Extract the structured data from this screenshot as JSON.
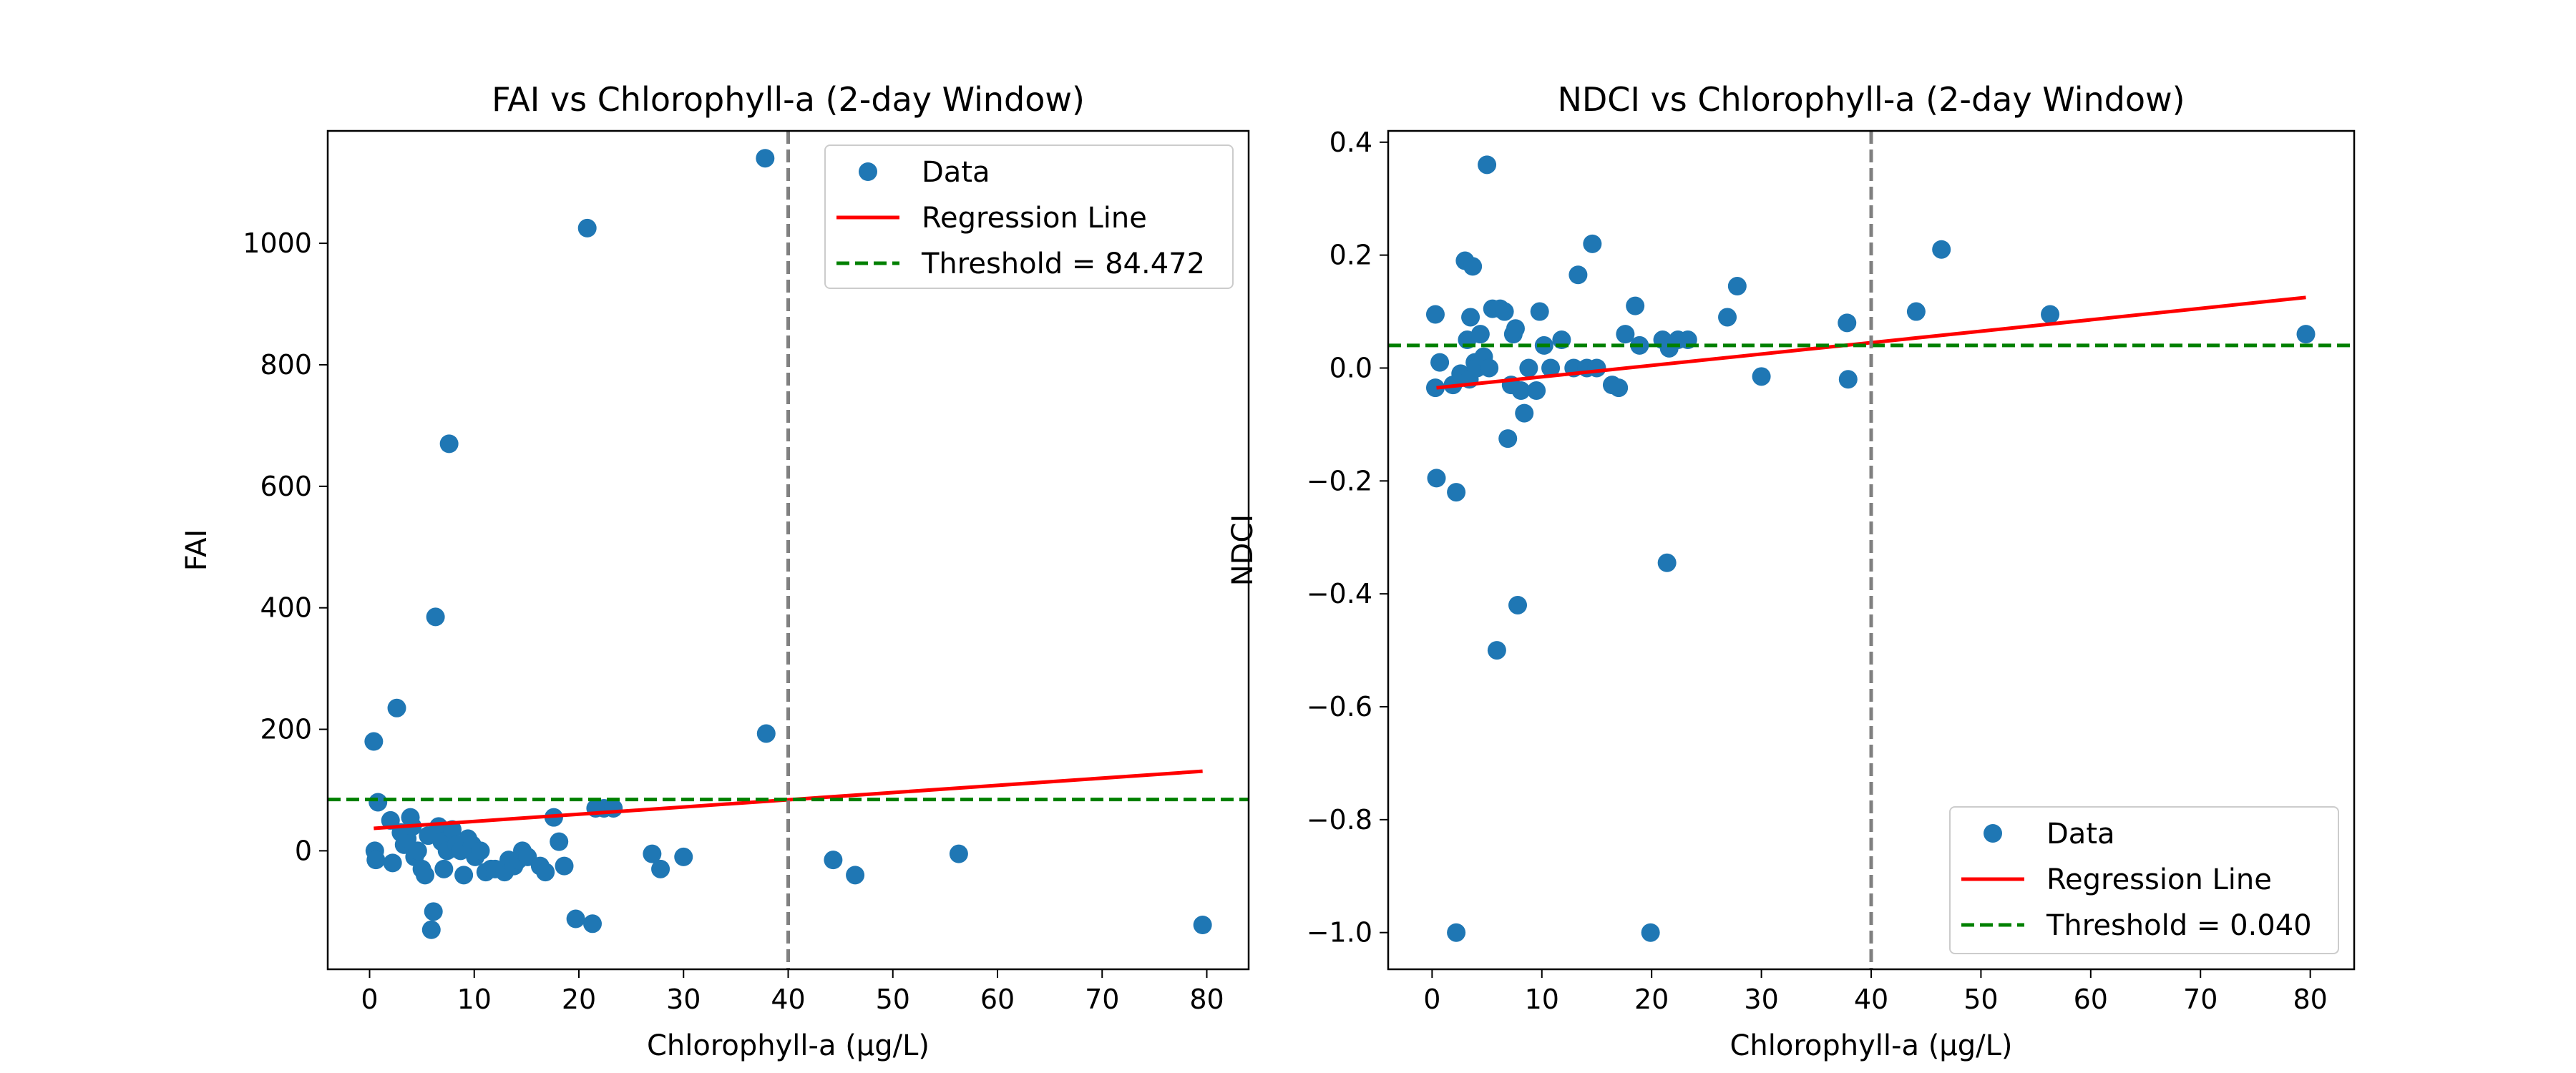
{
  "colors": {
    "point": "#1f77b4",
    "regression": "#ff0000",
    "threshold": "#008000",
    "vertical_line": "#808080"
  },
  "chart_data": [
    {
      "type": "scatter",
      "title": "FAI vs Chlorophyll-a (2-day Window)",
      "xlabel": "Chlorophyll-a (µg/L)",
      "ylabel": "FAI",
      "xlim": [
        -4,
        84
      ],
      "ylim": [
        -195,
        1185
      ],
      "xticks": [
        0,
        10,
        20,
        30,
        40,
        50,
        60,
        70,
        80
      ],
      "yticks": [
        0,
        200,
        400,
        600,
        800,
        1000
      ],
      "legend_position": "upper right",
      "legend": [
        "Data",
        "Regression Line",
        "Threshold = 84.472"
      ],
      "threshold": 84.472,
      "vertical_line_x": 40,
      "regression": {
        "x": [
          0.4,
          79.6
        ],
        "y": [
          37,
          131
        ]
      },
      "points": [
        [
          0.4,
          180
        ],
        [
          0.5,
          0
        ],
        [
          0.6,
          -15
        ],
        [
          0.8,
          80
        ],
        [
          2.0,
          50
        ],
        [
          2.2,
          -20
        ],
        [
          2.6,
          235
        ],
        [
          3.0,
          30
        ],
        [
          3.3,
          10
        ],
        [
          3.6,
          20
        ],
        [
          3.9,
          55
        ],
        [
          4.1,
          40
        ],
        [
          4.3,
          -10
        ],
        [
          4.6,
          0
        ],
        [
          5.0,
          -30
        ],
        [
          5.3,
          -40
        ],
        [
          5.6,
          25
        ],
        [
          5.9,
          -130
        ],
        [
          6.1,
          -100
        ],
        [
          6.3,
          385
        ],
        [
          6.6,
          40
        ],
        [
          6.9,
          15
        ],
        [
          7.1,
          -30
        ],
        [
          7.4,
          0
        ],
        [
          7.6,
          670
        ],
        [
          7.9,
          35
        ],
        [
          8.3,
          10
        ],
        [
          8.7,
          0
        ],
        [
          9.0,
          -40
        ],
        [
          9.4,
          20
        ],
        [
          9.8,
          10
        ],
        [
          10.1,
          -10
        ],
        [
          10.6,
          0
        ],
        [
          11.1,
          -35
        ],
        [
          11.6,
          -30
        ],
        [
          12.0,
          -30
        ],
        [
          12.9,
          -35
        ],
        [
          13.3,
          -15
        ],
        [
          13.8,
          -25
        ],
        [
          14.2,
          -15
        ],
        [
          14.6,
          0
        ],
        [
          15.1,
          -10
        ],
        [
          16.3,
          -25
        ],
        [
          16.8,
          -35
        ],
        [
          17.6,
          55
        ],
        [
          18.1,
          15
        ],
        [
          18.6,
          -25
        ],
        [
          19.7,
          -112
        ],
        [
          20.8,
          1025
        ],
        [
          21.3,
          -120
        ],
        [
          21.6,
          70
        ],
        [
          22.4,
          70
        ],
        [
          23.3,
          70
        ],
        [
          27.0,
          -5
        ],
        [
          27.8,
          -30
        ],
        [
          30.0,
          -10
        ],
        [
          37.8,
          1140
        ],
        [
          37.9,
          193
        ],
        [
          44.3,
          -15
        ],
        [
          46.4,
          -40
        ],
        [
          56.3,
          -5
        ],
        [
          79.6,
          -122
        ]
      ]
    },
    {
      "type": "scatter",
      "title": "NDCI vs Chlorophyll-a (2-day Window)",
      "xlabel": "Chlorophyll-a (µg/L)",
      "ylabel": "NDCI",
      "xlim": [
        -4,
        84
      ],
      "ylim": [
        -1.065,
        0.42
      ],
      "xticks": [
        0,
        10,
        20,
        30,
        40,
        50,
        60,
        70,
        80
      ],
      "yticks": [
        -1.0,
        -0.8,
        -0.6,
        -0.4,
        -0.2,
        0.0,
        0.2,
        0.4
      ],
      "ytick_labels": [
        "−1.0",
        "−0.8",
        "−0.6",
        "−0.4",
        "−0.2",
        "0.0",
        "0.2",
        "0.4"
      ],
      "legend_position": "lower right",
      "legend": [
        "Data",
        "Regression Line",
        "Threshold = 0.040"
      ],
      "threshold": 0.04,
      "vertical_line_x": 40,
      "regression": {
        "x": [
          0.4,
          79.6
        ],
        "y": [
          -0.035,
          0.125
        ]
      },
      "points": [
        [
          0.3,
          0.095
        ],
        [
          0.3,
          -0.035
        ],
        [
          0.4,
          -0.195
        ],
        [
          0.7,
          0.01
        ],
        [
          1.9,
          -0.03
        ],
        [
          2.2,
          -0.22
        ],
        [
          2.2,
          -1.0
        ],
        [
          2.6,
          -0.01
        ],
        [
          3.0,
          0.19
        ],
        [
          3.2,
          0.05
        ],
        [
          3.4,
          -0.02
        ],
        [
          3.5,
          0.09
        ],
        [
          3.7,
          0.18
        ],
        [
          3.9,
          0.01
        ],
        [
          4.1,
          0.0
        ],
        [
          4.4,
          0.06
        ],
        [
          4.7,
          0.02
        ],
        [
          5.0,
          0.36
        ],
        [
          5.2,
          0.0
        ],
        [
          5.5,
          0.105
        ],
        [
          5.9,
          -0.5
        ],
        [
          6.2,
          0.105
        ],
        [
          6.6,
          0.1
        ],
        [
          6.9,
          -0.125
        ],
        [
          7.2,
          -0.03
        ],
        [
          7.4,
          0.06
        ],
        [
          7.6,
          0.07
        ],
        [
          7.8,
          -0.42
        ],
        [
          8.1,
          -0.04
        ],
        [
          8.4,
          -0.08
        ],
        [
          8.8,
          0.0
        ],
        [
          9.5,
          -0.04
        ],
        [
          9.8,
          0.1
        ],
        [
          10.2,
          0.04
        ],
        [
          10.8,
          0.0
        ],
        [
          11.8,
          0.05
        ],
        [
          12.9,
          0.0
        ],
        [
          13.3,
          0.165
        ],
        [
          14.1,
          0.0
        ],
        [
          14.6,
          0.22
        ],
        [
          15.0,
          0.0
        ],
        [
          16.4,
          -0.03
        ],
        [
          17.0,
          -0.035
        ],
        [
          17.6,
          0.06
        ],
        [
          18.5,
          0.11
        ],
        [
          18.9,
          0.04
        ],
        [
          19.9,
          -1.0
        ],
        [
          21.0,
          0.05
        ],
        [
          21.4,
          -0.345
        ],
        [
          21.6,
          0.035
        ],
        [
          22.4,
          0.05
        ],
        [
          23.3,
          0.05
        ],
        [
          26.9,
          0.09
        ],
        [
          27.8,
          0.145
        ],
        [
          30.0,
          -0.015
        ],
        [
          37.8,
          0.08
        ],
        [
          37.9,
          -0.02
        ],
        [
          44.1,
          0.1
        ],
        [
          46.4,
          0.21
        ],
        [
          56.3,
          0.095
        ],
        [
          79.6,
          0.06
        ]
      ]
    }
  ]
}
